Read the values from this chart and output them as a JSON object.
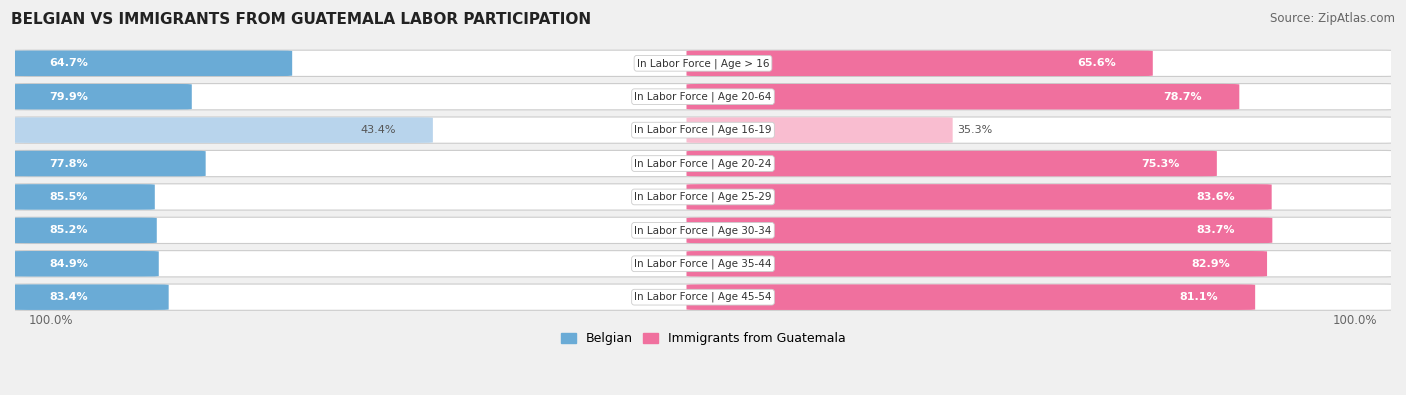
{
  "title": "BELGIAN VS IMMIGRANTS FROM GUATEMALA LABOR PARTICIPATION",
  "source": "Source: ZipAtlas.com",
  "categories": [
    "In Labor Force | Age > 16",
    "In Labor Force | Age 20-64",
    "In Labor Force | Age 16-19",
    "In Labor Force | Age 20-24",
    "In Labor Force | Age 25-29",
    "In Labor Force | Age 30-34",
    "In Labor Force | Age 35-44",
    "In Labor Force | Age 45-54"
  ],
  "belgian_values": [
    64.7,
    79.9,
    43.4,
    77.8,
    85.5,
    85.2,
    84.9,
    83.4
  ],
  "immigrant_values": [
    65.6,
    78.7,
    35.3,
    75.3,
    83.6,
    83.7,
    82.9,
    81.1
  ],
  "belgian_color_dark": "#6aabd6",
  "belgian_color_light": "#b8d4ec",
  "immigrant_color_dark": "#f0709e",
  "immigrant_color_light": "#f9bdd0",
  "row_bg_color": "#e8e8e8",
  "background_color": "#f0f0f0",
  "legend_belgian": "Belgian",
  "legend_immigrant": "Immigrants from Guatemala",
  "color_threshold": 60
}
